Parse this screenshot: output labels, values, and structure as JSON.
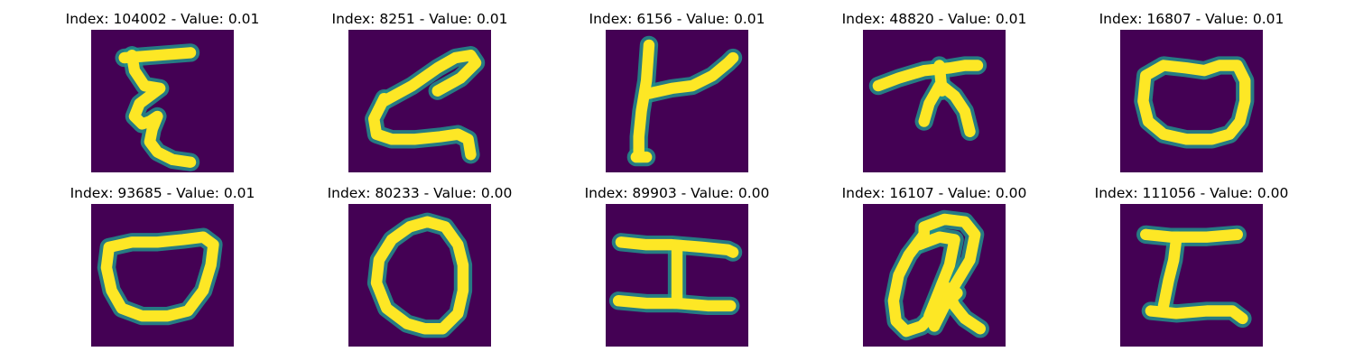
{
  "colors": {
    "background": "#440154",
    "mid": "#21918c",
    "stroke": "#fde725"
  },
  "panels": [
    {
      "index": "104002",
      "value": "0.01",
      "glyph": "epsilon-like"
    },
    {
      "index": "8251",
      "value": "0.01",
      "glyph": "angled-z"
    },
    {
      "index": "6156",
      "value": "0.01",
      "glyph": "k-like"
    },
    {
      "index": "48820",
      "value": "0.01",
      "glyph": "pi-cross"
    },
    {
      "index": "16807",
      "value": "0.01",
      "glyph": "rounded-o"
    },
    {
      "index": "93685",
      "value": "0.01",
      "glyph": "bowl"
    },
    {
      "index": "80233",
      "value": "0.00",
      "glyph": "oval-o"
    },
    {
      "index": "89903",
      "value": "0.00",
      "glyph": "i-beam"
    },
    {
      "index": "16107",
      "value": "0.00",
      "glyph": "looped-q"
    },
    {
      "index": "111056",
      "value": "0.00",
      "glyph": "block-z"
    }
  ]
}
